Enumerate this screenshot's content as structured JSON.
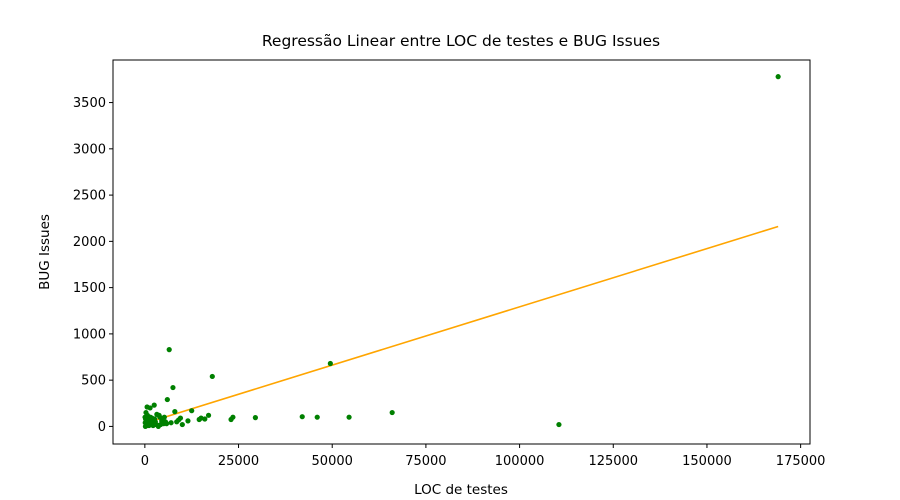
{
  "chart_data": {
    "type": "scatter",
    "title": "Regressão Linear entre LOC de testes e BUG Issues",
    "xlabel": "LOC de testes",
    "ylabel": "BUG Issues",
    "xlim": [
      -8500,
      177500
    ],
    "ylim": [
      -190,
      3960
    ],
    "xticks": [
      0,
      25000,
      50000,
      75000,
      100000,
      125000,
      150000,
      175000
    ],
    "xtick_labels": [
      "0",
      "25000",
      "50000",
      "75000",
      "100000",
      "125000",
      "150000",
      "175000"
    ],
    "yticks": [
      0,
      500,
      1000,
      1500,
      2000,
      2500,
      3000,
      3500
    ],
    "ytick_labels": [
      "0",
      "500",
      "1000",
      "1500",
      "2000",
      "2500",
      "3000",
      "3500"
    ],
    "grid": false,
    "colors": {
      "points": "#008000",
      "regression_line": "#ffa500"
    },
    "series": [
      {
        "kind": "points",
        "x": [
          169000,
          110500,
          66000,
          54500,
          49500,
          46000,
          42000,
          29500,
          23500,
          23000,
          18000,
          17000,
          16000,
          15000,
          14500,
          12500,
          11500,
          10000,
          9500,
          9000,
          8500,
          8000,
          7500,
          7000,
          6500,
          6000,
          5800,
          5500,
          5200,
          5000,
          4800,
          4500,
          4200,
          4000,
          3800,
          3600,
          3500,
          3200,
          3000,
          2800,
          2600,
          2500,
          2300,
          2200,
          2000,
          1900,
          1800,
          1600,
          1500,
          1400,
          1300,
          1200,
          1100,
          1000,
          900,
          800,
          700,
          600,
          500,
          400,
          300,
          200,
          150,
          100,
          50
        ],
        "y": [
          3780,
          20,
          150,
          100,
          680,
          100,
          105,
          95,
          100,
          75,
          540,
          120,
          80,
          90,
          75,
          170,
          60,
          20,
          90,
          70,
          50,
          160,
          420,
          40,
          830,
          290,
          30,
          50,
          100,
          30,
          40,
          60,
          20,
          100,
          120,
          0,
          10,
          130,
          20,
          50,
          80,
          230,
          30,
          10,
          60,
          90,
          20,
          40,
          100,
          200,
          60,
          30,
          10,
          90,
          30,
          50,
          120,
          210,
          10,
          60,
          150,
          80,
          0,
          40,
          100
        ]
      },
      {
        "kind": "line",
        "x": [
          0,
          169000
        ],
        "y": [
          33,
          2161
        ]
      }
    ]
  }
}
